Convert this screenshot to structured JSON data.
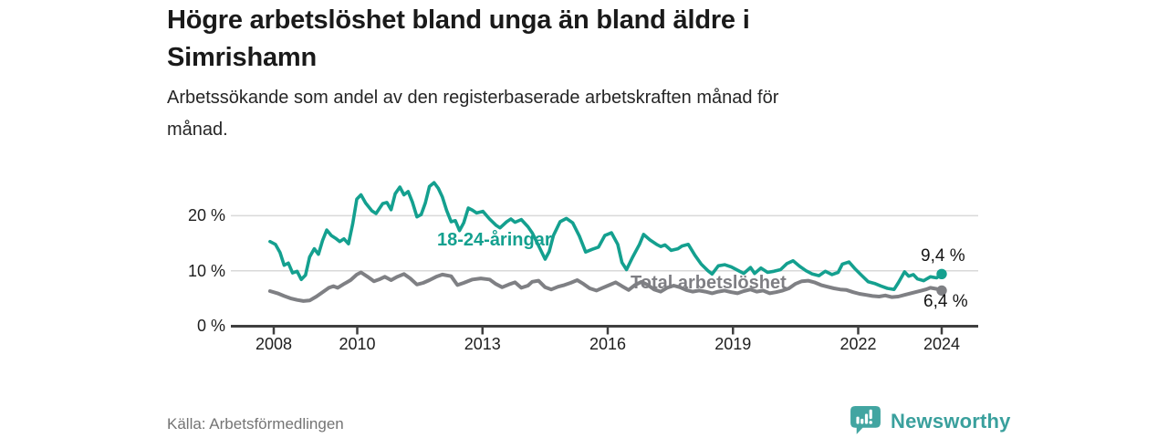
{
  "header": {
    "title_lines": [
      "Högre arbetslöshet bland unga än bland äldre i",
      "Simrishamn"
    ],
    "subtitle_lines": [
      "Arbetssökande som andel av den registerbaserade arbetskraften månad för",
      "månad."
    ]
  },
  "footer": {
    "source": "Källa: Arbetsförmedlingen",
    "brand": "Newsworthy"
  },
  "colors": {
    "youth_line": "#14A08F",
    "total_line": "#7F8084",
    "grid": "#D9D9D9",
    "axis": "#3F3F3F",
    "brand_teal": "#3AA09D"
  },
  "chart_data": {
    "type": "line",
    "title": "Högre arbetslöshet bland unga än bland äldre i Simrishamn",
    "subtitle": "Arbetssökande som andel av den registerbaserade arbetskraften månad för månad.",
    "grid": "horizontal",
    "x_axis": {
      "ticks": [
        2008,
        2010,
        2013,
        2016,
        2019,
        2022,
        2024
      ],
      "labels": [
        "2008",
        "2010",
        "2013",
        "2016",
        "2019",
        "2022",
        "2024"
      ],
      "range": [
        2007.0,
        2024.9
      ]
    },
    "y_axis": {
      "ticks": [
        0,
        10,
        20
      ],
      "labels": [
        "0 %",
        "10 %",
        "20 %"
      ],
      "unit": "%",
      "range": [
        0,
        27
      ]
    },
    "series": [
      {
        "name": "18-24-åringar",
        "color": "#14A08F",
        "end_label": "9,4 %",
        "end_value": 9.4,
        "points": [
          [
            2007.91,
            15.3
          ],
          [
            2008.04,
            14.8
          ],
          [
            2008.15,
            13.3
          ],
          [
            2008.25,
            11.0
          ],
          [
            2008.35,
            11.4
          ],
          [
            2008.45,
            9.6
          ],
          [
            2008.56,
            9.9
          ],
          [
            2008.66,
            8.4
          ],
          [
            2008.76,
            9.2
          ],
          [
            2008.86,
            12.5
          ],
          [
            2008.97,
            14.0
          ],
          [
            2009.07,
            13.0
          ],
          [
            2009.17,
            15.5
          ],
          [
            2009.27,
            17.4
          ],
          [
            2009.38,
            16.4
          ],
          [
            2009.48,
            15.9
          ],
          [
            2009.58,
            15.3
          ],
          [
            2009.68,
            15.8
          ],
          [
            2009.79,
            14.9
          ],
          [
            2009.89,
            18.5
          ],
          [
            2009.99,
            23.0
          ],
          [
            2010.09,
            23.8
          ],
          [
            2010.2,
            22.3
          ],
          [
            2010.35,
            20.9
          ],
          [
            2010.45,
            20.4
          ],
          [
            2010.61,
            22.2
          ],
          [
            2010.71,
            22.4
          ],
          [
            2010.81,
            21.1
          ],
          [
            2010.91,
            24.0
          ],
          [
            2011.02,
            25.2
          ],
          [
            2011.12,
            23.8
          ],
          [
            2011.22,
            24.4
          ],
          [
            2011.32,
            22.5
          ],
          [
            2011.43,
            19.8
          ],
          [
            2011.53,
            20.2
          ],
          [
            2011.63,
            22.3
          ],
          [
            2011.73,
            25.3
          ],
          [
            2011.84,
            26.0
          ],
          [
            2011.94,
            25.0
          ],
          [
            2012.04,
            23.4
          ],
          [
            2012.14,
            21.0
          ],
          [
            2012.25,
            18.9
          ],
          [
            2012.35,
            19.1
          ],
          [
            2012.45,
            17.3
          ],
          [
            2012.55,
            18.7
          ],
          [
            2012.66,
            21.4
          ],
          [
            2012.76,
            21.0
          ],
          [
            2012.86,
            20.5
          ],
          [
            2013.01,
            20.8
          ],
          [
            2013.17,
            19.4
          ],
          [
            2013.32,
            18.3
          ],
          [
            2013.42,
            17.8
          ],
          [
            2013.58,
            18.9
          ],
          [
            2013.68,
            19.4
          ],
          [
            2013.78,
            18.8
          ],
          [
            2013.93,
            19.3
          ],
          [
            2014.09,
            18.0
          ],
          [
            2014.19,
            16.9
          ],
          [
            2014.34,
            14.6
          ],
          [
            2014.5,
            12.1
          ],
          [
            2014.6,
            13.5
          ],
          [
            2014.7,
            16.4
          ],
          [
            2014.86,
            18.9
          ],
          [
            2015.01,
            19.5
          ],
          [
            2015.16,
            18.7
          ],
          [
            2015.32,
            16.3
          ],
          [
            2015.47,
            13.4
          ],
          [
            2015.63,
            13.9
          ],
          [
            2015.78,
            14.3
          ],
          [
            2015.93,
            16.4
          ],
          [
            2016.09,
            16.9
          ],
          [
            2016.24,
            14.8
          ],
          [
            2016.34,
            11.5
          ],
          [
            2016.45,
            10.2
          ],
          [
            2016.6,
            12.5
          ],
          [
            2016.76,
            14.8
          ],
          [
            2016.86,
            16.6
          ],
          [
            2017.01,
            15.6
          ],
          [
            2017.17,
            14.8
          ],
          [
            2017.27,
            14.4
          ],
          [
            2017.37,
            14.7
          ],
          [
            2017.52,
            13.7
          ],
          [
            2017.68,
            14.0
          ],
          [
            2017.78,
            14.5
          ],
          [
            2017.93,
            14.8
          ],
          [
            2018.09,
            12.8
          ],
          [
            2018.24,
            11.2
          ],
          [
            2018.4,
            10.0
          ],
          [
            2018.5,
            9.4
          ],
          [
            2018.65,
            10.9
          ],
          [
            2018.8,
            11.1
          ],
          [
            2018.96,
            10.7
          ],
          [
            2019.11,
            10.1
          ],
          [
            2019.26,
            9.5
          ],
          [
            2019.42,
            10.6
          ],
          [
            2019.52,
            9.5
          ],
          [
            2019.67,
            10.5
          ],
          [
            2019.83,
            9.7
          ],
          [
            2019.98,
            9.9
          ],
          [
            2020.14,
            10.2
          ],
          [
            2020.29,
            11.3
          ],
          [
            2020.44,
            11.8
          ],
          [
            2020.6,
            10.8
          ],
          [
            2020.75,
            10.0
          ],
          [
            2020.9,
            9.4
          ],
          [
            2021.06,
            9.1
          ],
          [
            2021.21,
            9.9
          ],
          [
            2021.37,
            9.3
          ],
          [
            2021.52,
            9.7
          ],
          [
            2021.62,
            11.2
          ],
          [
            2021.78,
            11.6
          ],
          [
            2021.93,
            10.3
          ],
          [
            2022.09,
            9.1
          ],
          [
            2022.24,
            8.0
          ],
          [
            2022.39,
            7.7
          ],
          [
            2022.55,
            7.2
          ],
          [
            2022.7,
            6.8
          ],
          [
            2022.86,
            6.6
          ],
          [
            2022.96,
            7.8
          ],
          [
            2023.11,
            9.8
          ],
          [
            2023.21,
            9.0
          ],
          [
            2023.32,
            9.3
          ],
          [
            2023.42,
            8.5
          ],
          [
            2023.57,
            8.2
          ],
          [
            2023.73,
            8.9
          ],
          [
            2023.88,
            8.7
          ],
          [
            2024.0,
            9.4
          ]
        ]
      },
      {
        "name": "Total arbetslöshet",
        "color": "#7F8084",
        "end_label": "6,4 %",
        "end_value": 6.4,
        "points": [
          [
            2007.91,
            6.3
          ],
          [
            2008.09,
            5.9
          ],
          [
            2008.25,
            5.4
          ],
          [
            2008.4,
            5.0
          ],
          [
            2008.56,
            4.7
          ],
          [
            2008.71,
            4.5
          ],
          [
            2008.86,
            4.6
          ],
          [
            2009.02,
            5.3
          ],
          [
            2009.17,
            6.1
          ],
          [
            2009.32,
            6.9
          ],
          [
            2009.43,
            7.2
          ],
          [
            2009.53,
            6.9
          ],
          [
            2009.68,
            7.6
          ],
          [
            2009.84,
            8.3
          ],
          [
            2009.99,
            9.3
          ],
          [
            2010.09,
            9.7
          ],
          [
            2010.25,
            8.9
          ],
          [
            2010.4,
            8.1
          ],
          [
            2010.55,
            8.5
          ],
          [
            2010.66,
            8.9
          ],
          [
            2010.81,
            8.3
          ],
          [
            2010.96,
            8.9
          ],
          [
            2011.12,
            9.4
          ],
          [
            2011.27,
            8.6
          ],
          [
            2011.43,
            7.5
          ],
          [
            2011.58,
            7.8
          ],
          [
            2011.73,
            8.3
          ],
          [
            2011.89,
            8.9
          ],
          [
            2012.04,
            9.3
          ],
          [
            2012.25,
            9.0
          ],
          [
            2012.4,
            7.4
          ],
          [
            2012.55,
            7.8
          ],
          [
            2012.76,
            8.4
          ],
          [
            2012.96,
            8.6
          ],
          [
            2013.17,
            8.4
          ],
          [
            2013.32,
            7.6
          ],
          [
            2013.47,
            7.0
          ],
          [
            2013.63,
            7.5
          ],
          [
            2013.78,
            7.9
          ],
          [
            2013.93,
            6.9
          ],
          [
            2014.09,
            7.3
          ],
          [
            2014.19,
            8.0
          ],
          [
            2014.34,
            8.2
          ],
          [
            2014.5,
            7.0
          ],
          [
            2014.65,
            6.6
          ],
          [
            2014.81,
            7.1
          ],
          [
            2014.96,
            7.4
          ],
          [
            2015.11,
            7.8
          ],
          [
            2015.27,
            8.3
          ],
          [
            2015.42,
            7.6
          ],
          [
            2015.57,
            6.8
          ],
          [
            2015.73,
            6.4
          ],
          [
            2015.88,
            6.9
          ],
          [
            2016.04,
            7.4
          ],
          [
            2016.19,
            7.9
          ],
          [
            2016.34,
            7.2
          ],
          [
            2016.5,
            6.5
          ],
          [
            2016.65,
            7.4
          ],
          [
            2016.81,
            8.0
          ],
          [
            2016.96,
            7.4
          ],
          [
            2017.11,
            6.6
          ],
          [
            2017.27,
            6.2
          ],
          [
            2017.42,
            6.9
          ],
          [
            2017.58,
            7.3
          ],
          [
            2017.73,
            7.0
          ],
          [
            2017.88,
            6.5
          ],
          [
            2018.03,
            6.2
          ],
          [
            2018.19,
            6.4
          ],
          [
            2018.34,
            6.2
          ],
          [
            2018.5,
            5.9
          ],
          [
            2018.65,
            6.2
          ],
          [
            2018.8,
            6.4
          ],
          [
            2018.96,
            6.1
          ],
          [
            2019.11,
            5.9
          ],
          [
            2019.26,
            6.3
          ],
          [
            2019.42,
            6.6
          ],
          [
            2019.57,
            6.2
          ],
          [
            2019.72,
            6.4
          ],
          [
            2019.88,
            5.9
          ],
          [
            2020.03,
            6.1
          ],
          [
            2020.19,
            6.4
          ],
          [
            2020.34,
            6.8
          ],
          [
            2020.49,
            7.6
          ],
          [
            2020.65,
            8.1
          ],
          [
            2020.8,
            8.2
          ],
          [
            2020.95,
            7.9
          ],
          [
            2021.11,
            7.4
          ],
          [
            2021.26,
            7.1
          ],
          [
            2021.42,
            6.8
          ],
          [
            2021.57,
            6.6
          ],
          [
            2021.72,
            6.5
          ],
          [
            2021.88,
            6.1
          ],
          [
            2022.03,
            5.8
          ],
          [
            2022.19,
            5.6
          ],
          [
            2022.34,
            5.4
          ],
          [
            2022.5,
            5.3
          ],
          [
            2022.65,
            5.5
          ],
          [
            2022.8,
            5.2
          ],
          [
            2022.96,
            5.3
          ],
          [
            2023.11,
            5.6
          ],
          [
            2023.26,
            5.9
          ],
          [
            2023.42,
            6.2
          ],
          [
            2023.52,
            6.4
          ],
          [
            2023.62,
            6.6
          ],
          [
            2023.73,
            6.9
          ],
          [
            2023.88,
            6.7
          ],
          [
            2024.0,
            6.4
          ]
        ]
      }
    ]
  }
}
